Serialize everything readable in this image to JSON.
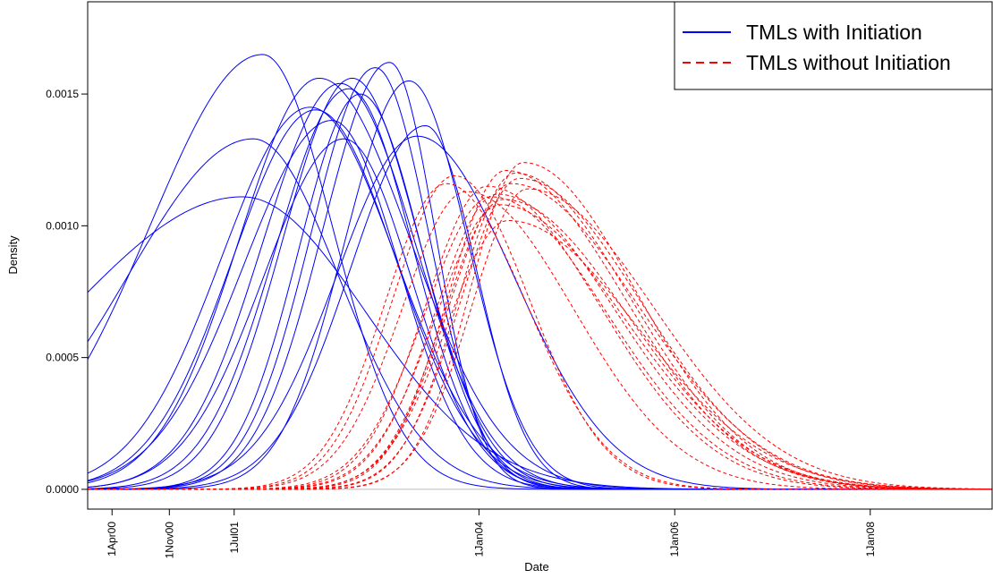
{
  "chart_data": {
    "type": "line",
    "title": "",
    "xlabel": "Date",
    "ylabel": "Density",
    "x_axis": "date",
    "xlim": [
      "2000-01-01",
      "2009-03-31"
    ],
    "ylim": [
      -7.5e-05,
      0.00185
    ],
    "xticks": [
      {
        "date": "2000-04-01",
        "label": "1Apr00"
      },
      {
        "date": "2000-11-01",
        "label": "1Nov00"
      },
      {
        "date": "2001-07-01",
        "label": "1Jul01"
      },
      {
        "date": "2004-01-01",
        "label": "1Jan04"
      },
      {
        "date": "2006-01-01",
        "label": "1Jan06"
      },
      {
        "date": "2008-01-01",
        "label": "1Jan08"
      }
    ],
    "yticks": [
      {
        "value": 0,
        "label": "0.0000"
      },
      {
        "value": 0.0005,
        "label": "0.0005"
      },
      {
        "value": 0.001,
        "label": "0.0010"
      },
      {
        "value": 0.0015,
        "label": "0.0015"
      }
    ],
    "grid": false,
    "baseline": {
      "value": 0,
      "color": "#bbbbbb"
    },
    "legend": {
      "position": "top-right",
      "entries": [
        {
          "label": "TMLs with Initiation",
          "color": "#0000ff",
          "style": "solid"
        },
        {
          "label": "TMLs without Initiation",
          "color": "#ff0000",
          "style": "dashed"
        }
      ]
    },
    "groups": [
      {
        "legend_label": "TMLs with Initiation",
        "color": "#0000ff",
        "style": "solid",
        "curves": [
          {
            "peak_date": "2001-10-15",
            "peak_density": 0.00165,
            "left_sd_days": 420,
            "right_sd_days": 260
          },
          {
            "peak_date": "2001-09-10",
            "peak_density": 0.00133,
            "left_sd_days": 470,
            "right_sd_days": 320
          },
          {
            "peak_date": "2001-08-01",
            "peak_density": 0.00111,
            "left_sd_days": 650,
            "right_sd_days": 460
          },
          {
            "peak_date": "2002-05-15",
            "peak_density": 0.00156,
            "left_sd_days": 300,
            "right_sd_days": 340
          },
          {
            "peak_date": "2002-04-10",
            "peak_density": 0.00145,
            "left_sd_days": 330,
            "right_sd_days": 320
          },
          {
            "peak_date": "2002-08-01",
            "peak_density": 0.00154,
            "left_sd_days": 290,
            "right_sd_days": 280
          },
          {
            "peak_date": "2002-09-15",
            "peak_density": 0.00156,
            "left_sd_days": 260,
            "right_sd_days": 250
          },
          {
            "peak_date": "2002-09-01",
            "peak_density": 0.00152,
            "left_sd_days": 270,
            "right_sd_days": 240
          },
          {
            "peak_date": "2002-08-15",
            "peak_density": 0.00133,
            "left_sd_days": 300,
            "right_sd_days": 250
          },
          {
            "peak_date": "2002-05-01",
            "peak_density": 0.00144,
            "left_sd_days": 310,
            "right_sd_days": 300
          },
          {
            "peak_date": "2002-10-15",
            "peak_density": 0.0015,
            "left_sd_days": 230,
            "right_sd_days": 230
          },
          {
            "peak_date": "2002-12-10",
            "peak_density": 0.0016,
            "left_sd_days": 240,
            "right_sd_days": 200
          },
          {
            "peak_date": "2003-02-01",
            "peak_density": 0.00162,
            "left_sd_days": 250,
            "right_sd_days": 170
          },
          {
            "peak_date": "2003-04-15",
            "peak_density": 0.00155,
            "left_sd_days": 240,
            "right_sd_days": 220
          },
          {
            "peak_date": "2003-06-15",
            "peak_density": 0.00138,
            "left_sd_days": 280,
            "right_sd_days": 190
          },
          {
            "peak_date": "2003-05-15",
            "peak_density": 0.00134,
            "left_sd_days": 300,
            "right_sd_days": 360
          },
          {
            "peak_date": "2002-07-01",
            "peak_density": 0.0014,
            "left_sd_days": 330,
            "right_sd_days": 250
          }
        ]
      },
      {
        "legend_label": "TMLs without Initiation",
        "color": "#ff0000",
        "style": "dashed",
        "curves": [
          {
            "peak_date": "2003-10-01",
            "peak_density": 0.00119,
            "left_sd_days": 230,
            "right_sd_days": 280
          },
          {
            "peak_date": "2003-09-01",
            "peak_density": 0.00116,
            "left_sd_days": 230,
            "right_sd_days": 300
          },
          {
            "peak_date": "2003-11-15",
            "peak_density": 0.00113,
            "left_sd_days": 240,
            "right_sd_days": 400
          },
          {
            "peak_date": "2004-02-01",
            "peak_density": 0.00115,
            "left_sd_days": 230,
            "right_sd_days": 420
          },
          {
            "peak_date": "2004-03-10",
            "peak_density": 0.00112,
            "left_sd_days": 230,
            "right_sd_days": 440
          },
          {
            "peak_date": "2004-04-01",
            "peak_density": 0.0011,
            "left_sd_days": 220,
            "right_sd_days": 460
          },
          {
            "peak_date": "2004-04-20",
            "peak_density": 0.00102,
            "left_sd_days": 230,
            "right_sd_days": 480
          },
          {
            "peak_date": "2004-05-15",
            "peak_density": 0.0012,
            "left_sd_days": 210,
            "right_sd_days": 430
          },
          {
            "peak_date": "2004-06-15",
            "peak_density": 0.00124,
            "left_sd_days": 200,
            "right_sd_days": 420
          },
          {
            "peak_date": "2004-06-01",
            "peak_density": 0.00118,
            "left_sd_days": 220,
            "right_sd_days": 450
          },
          {
            "peak_date": "2004-05-01",
            "peak_density": 0.00116,
            "left_sd_days": 230,
            "right_sd_days": 470
          },
          {
            "peak_date": "2004-03-20",
            "peak_density": 0.00108,
            "left_sd_days": 240,
            "right_sd_days": 460
          },
          {
            "peak_date": "2004-04-10",
            "peak_density": 0.00121,
            "left_sd_days": 215,
            "right_sd_days": 440
          },
          {
            "peak_date": "2004-02-15",
            "peak_density": 0.00111,
            "left_sd_days": 245,
            "right_sd_days": 430
          },
          {
            "peak_date": "2004-07-01",
            "peak_density": 0.00114,
            "left_sd_days": 210,
            "right_sd_days": 470
          }
        ]
      }
    ]
  }
}
